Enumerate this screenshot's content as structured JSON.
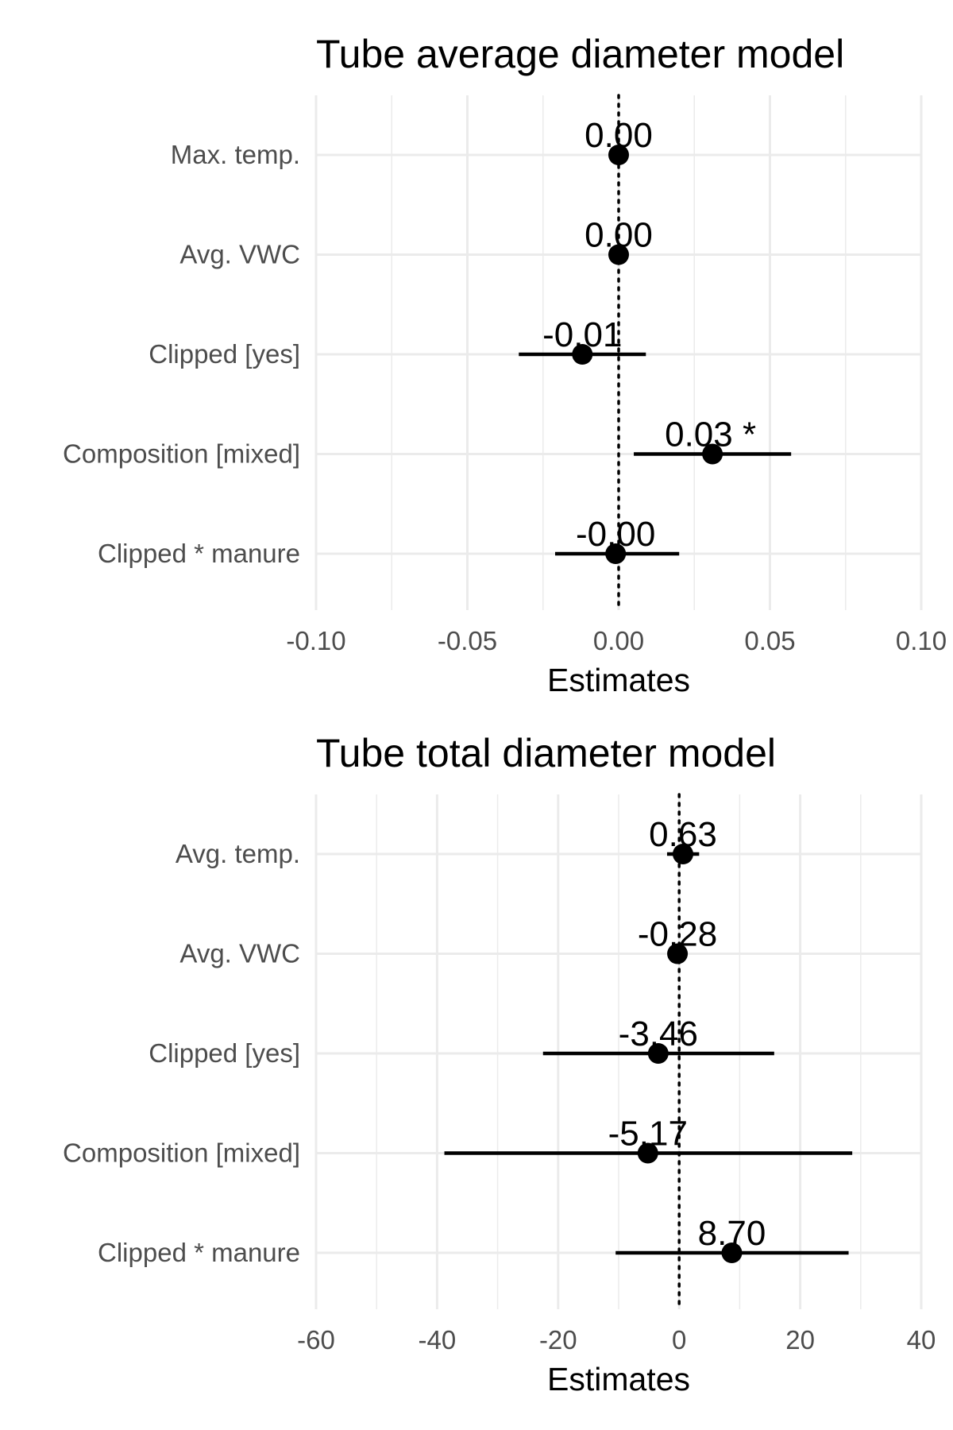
{
  "chart_data": [
    {
      "type": "scatter",
      "subtype": "forest-plot",
      "title": "Tube average diameter model",
      "xlabel": "Estimates",
      "ylabel": "",
      "xlim": [
        -0.1,
        0.1
      ],
      "xticks": [
        -0.1,
        -0.05,
        0.0,
        0.05,
        0.1
      ],
      "xtick_labels": [
        "-0.10",
        "-0.05",
        "0.00",
        "0.05",
        "0.10"
      ],
      "reference_line": 0,
      "grid": true,
      "categories": [
        "Max. temp.",
        "Avg. VWC",
        "Clipped [yes]",
        "Composition [mixed]",
        "Clipped * manure"
      ],
      "estimates": [
        0.0,
        0.0,
        -0.012,
        0.031,
        -0.001
      ],
      "ci_low": [
        -0.0005,
        -0.0005,
        -0.033,
        0.005,
        -0.021
      ],
      "ci_high": [
        0.0005,
        0.0005,
        0.009,
        0.057,
        0.02
      ],
      "labels": [
        "0.00",
        "0.00",
        "-0.01",
        "0.03 *",
        "-0.00"
      ]
    },
    {
      "type": "scatter",
      "subtype": "forest-plot",
      "title": "Tube total diameter model",
      "xlabel": "Estimates",
      "ylabel": "",
      "xlim": [
        -60,
        40
      ],
      "xticks": [
        -60,
        -40,
        -20,
        0,
        20,
        40
      ],
      "xtick_labels": [
        "-60",
        "-40",
        "-20",
        "0",
        "20",
        "40"
      ],
      "reference_line": 0,
      "grid": true,
      "categories": [
        "Avg. temp.",
        "Avg. VWC",
        "Clipped [yes]",
        "Composition [mixed]",
        "Clipped * manure"
      ],
      "estimates": [
        0.63,
        -0.28,
        -3.46,
        -5.17,
        8.7
      ],
      "ci_low": [
        -2.0,
        -1.2,
        -22.5,
        -38.8,
        -10.5
      ],
      "ci_high": [
        3.3,
        0.7,
        15.7,
        28.6,
        28.0
      ],
      "labels": [
        "0.63",
        "-0.28",
        "-3.46",
        "-5.17",
        "8.70"
      ]
    }
  ]
}
